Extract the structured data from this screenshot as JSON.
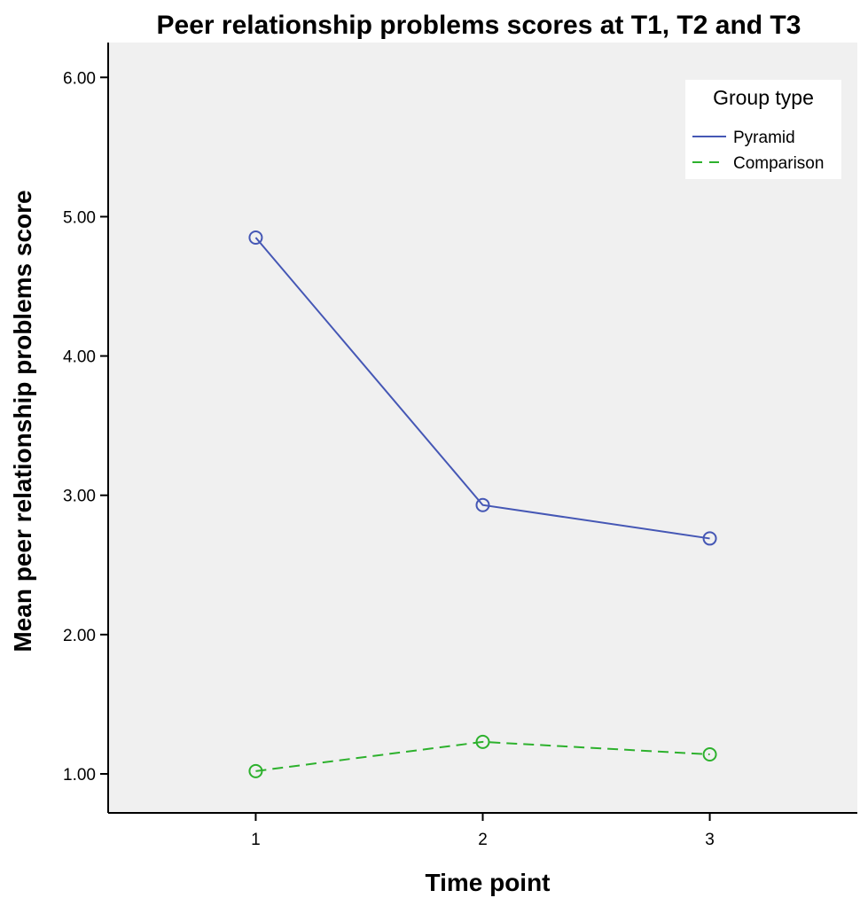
{
  "chart_data": {
    "type": "line",
    "title": "Peer relationship problems scores at T1, T2 and T3",
    "xlabel": "Time point",
    "ylabel": "Mean peer relationship problems score",
    "x": [
      1,
      2,
      3
    ],
    "x_tick_labels": [
      "1",
      "2",
      "3"
    ],
    "xlim": [
      0.35,
      3.65
    ],
    "ylim": [
      0.72,
      6.25
    ],
    "y_ticks": [
      1,
      2,
      3,
      4,
      5,
      6
    ],
    "y_tick_labels": [
      "1.00",
      "2.00",
      "3.00",
      "4.00",
      "5.00",
      "6.00"
    ],
    "grid": false,
    "legend": {
      "title": "Group type",
      "position": "top-right"
    },
    "series": [
      {
        "name": "Pyramid",
        "values": [
          4.85,
          2.93,
          2.69
        ],
        "color": "#4557b5",
        "line_style": "solid",
        "marker": "open-circle"
      },
      {
        "name": "Comparison",
        "values": [
          1.02,
          1.23,
          1.14
        ],
        "color": "#2db12d",
        "line_style": "dashed",
        "marker": "open-circle"
      }
    ]
  }
}
